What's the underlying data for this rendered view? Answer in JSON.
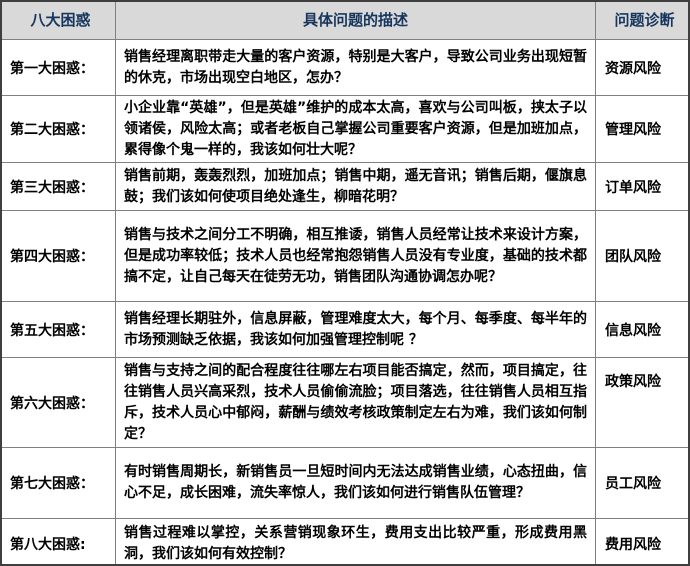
{
  "colors": {
    "header_bg": "#d9d9d9",
    "header_text": "#17365d",
    "body_text": "#000000",
    "inner_border": "#808080",
    "outer_border": "#3f3f3f"
  },
  "table": {
    "headers": {
      "col1": "八大困惑",
      "col2": "具体问题的描述",
      "col3": "问题诊断"
    },
    "rows": [
      {
        "label": "第一大困惑：",
        "description": "销售经理离职带走大量的客户资源，特别是大客户，导致公司业务出现短暂的休克，市场出现空白地区，怎办？",
        "diagnosis": "资源风险"
      },
      {
        "label": "第二大困惑：",
        "description": "小企业靠“英雄”，但是英雄”维护的成本太高，喜欢与公司叫板，挟太子以领诸侯，风险太高；或者老板自己掌握公司重要客户资源，但是加班加点，累得像个鬼一样的，我该如何壮大呢？",
        "diagnosis": "管理风险"
      },
      {
        "label": "第三大困惑：",
        "description": "销售前期，轰轰烈烈，加班加点；销售中期，遥无音讯；销售后期，偃旗息鼓；我们该如何使项目绝处逢生，柳暗花明？",
        "diagnosis": "订单风险"
      },
      {
        "label": "第四大困惑：",
        "description": "销售与技术之间分工不明确，相互推诿，销售人员经常让技术来设计方案，但是成功率较低；技术人员也经常抱怨销售人员没有专业度，基础的技术都搞不定，让自己每天在徒劳无功，销售团队沟通协调怎办呢？",
        "diagnosis": "团队风险"
      },
      {
        "label": "第五大困惑：",
        "description": "销售经理长期驻外，信息屏蔽，管理难度太大，每个月、每季度、每半年的市场预测缺乏依据，我该如何加强管理控制呢 ？",
        "diagnosis": "信息风险"
      },
      {
        "label": "第六大困惑：",
        "description": "销售与支持之间的配合程度往往哪左右项目能否搞定，然而，项目搞定，往往销售人员兴高采烈，技术人员偷偷流脸；项目落选，往往销售人员相互指斥，技术人员心中郁闷，薪酬与绩效考核政策制定左右为难，我们该如何制定？",
        "diagnosis": "政策风险"
      },
      {
        "label": "第七大困惑：",
        "description": "有时销售周期长，新销售员一旦短时间内无法达成销售业绩，心态扭曲，信心不足，成长困难，流失率惊人，我们该如何进行销售队伍管理？",
        "diagnosis": "员工风险"
      },
      {
        "label": "第八大困惑:",
        "description": "销售过程难以掌控，关系营销现象环生，费用支出比较严重，形成费用黑洞，我们该如何有效控制？",
        "diagnosis": "费用风险"
      }
    ]
  }
}
